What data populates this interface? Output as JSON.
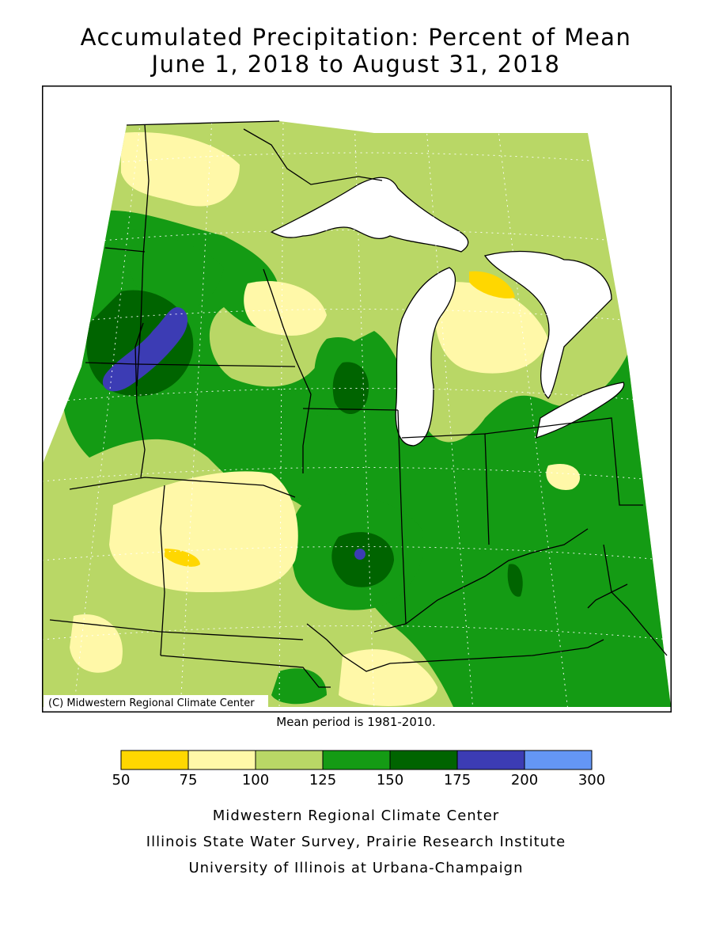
{
  "title": {
    "line1": "Accumulated Precipitation: Percent of Mean",
    "line2": "June 1, 2018 to August 31, 2018"
  },
  "map": {
    "copyright": "(C) Midwestern Regional Climate Center",
    "mean_period_note": "Mean period is 1981-2010."
  },
  "legend": {
    "ticks": [
      "50",
      "75",
      "100",
      "125",
      "150",
      "175",
      "200",
      "300"
    ],
    "bins": [
      {
        "range": "50-75",
        "color": "#FFD700"
      },
      {
        "range": "75-100",
        "color": "#FFF8A8"
      },
      {
        "range": "100-125",
        "color": "#B9D766"
      },
      {
        "range": "125-150",
        "color": "#149B14"
      },
      {
        "range": "150-175",
        "color": "#006400"
      },
      {
        "range": "175-200",
        "color": "#3C3CB4"
      },
      {
        "range": "200-300",
        "color": "#6496F5"
      }
    ]
  },
  "footer": {
    "line1": "Midwestern Regional Climate Center",
    "line2": "Illinois State Water Survey, Prairie Research Institute",
    "line3": "University of Illinois at Urbana-Champaign"
  }
}
